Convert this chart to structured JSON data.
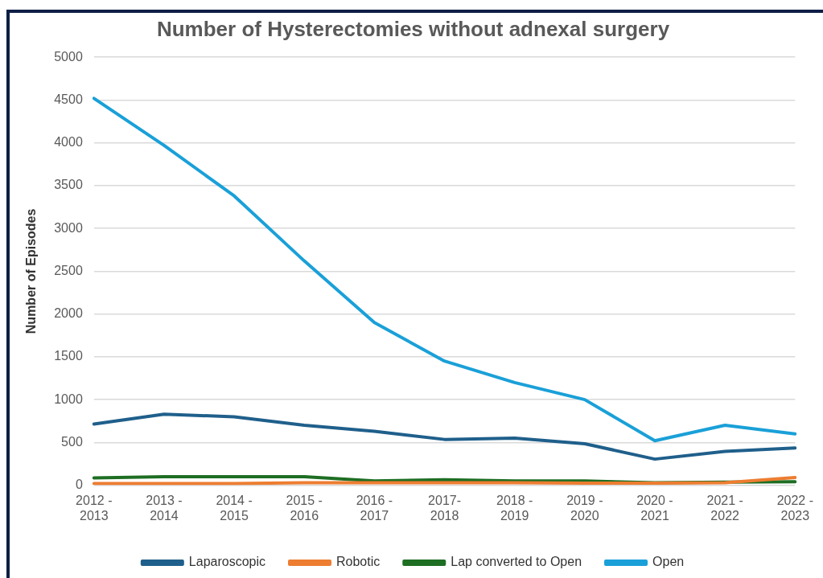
{
  "chart_data": {
    "type": "line",
    "title": "Number of Hysterectomies without adnexal surgery",
    "ylabel": "Number of Episodes",
    "categories": [
      "2012 - 2013",
      "2013 - 2014",
      "2014 - 2015",
      "2015 - 2016",
      "2016 - 2017",
      "2017- 2018",
      "2018 - 2019",
      "2019 - 2020",
      "2020 - 2021",
      "2021 - 2022",
      "2022 - 2023"
    ],
    "series": [
      {
        "name": "Laparoscopic",
        "color": "#1f5f8b",
        "values": [
          715,
          830,
          800,
          700,
          630,
          535,
          550,
          485,
          305,
          395,
          435
        ]
      },
      {
        "name": "Robotic",
        "color": "#ed7d31",
        "values": [
          20,
          20,
          20,
          30,
          30,
          30,
          30,
          25,
          25,
          30,
          90
        ]
      },
      {
        "name": "Lap converted to Open",
        "color": "#1e6e23",
        "values": [
          85,
          100,
          100,
          100,
          50,
          65,
          50,
          50,
          30,
          35,
          40
        ]
      },
      {
        "name": "Open",
        "color": "#1aa0d8",
        "values": [
          4520,
          3970,
          3380,
          2620,
          1900,
          1450,
          1200,
          1000,
          520,
          700,
          600
        ]
      }
    ],
    "ylim": [
      0,
      5000
    ],
    "yticks": [
      0,
      500,
      1000,
      1500,
      2000,
      2500,
      3000,
      3500,
      4000,
      4500,
      5000
    ],
    "grid": "y",
    "legend": "bottom",
    "marker": "none",
    "line_style": "solid"
  }
}
